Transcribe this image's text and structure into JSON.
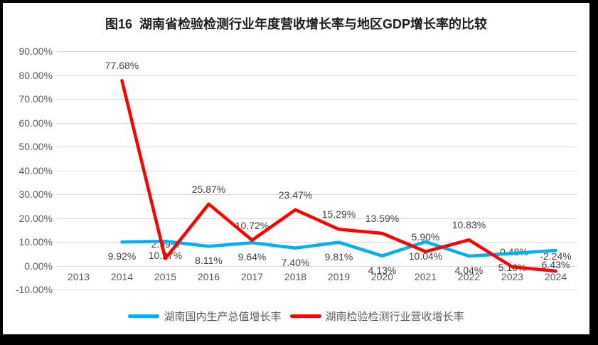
{
  "title": "图16  湖南省检验检测行业年度营收增长率与地区GDP增长率的比较",
  "chart_data": {
    "type": "line",
    "title": "图16  湖南省检验检测行业年度营收增长率与地区GDP增长率的比较",
    "xlabel": "",
    "ylabel": "",
    "ylim": [
      -10,
      90
    ],
    "grid": true,
    "legend_position": "bottom",
    "categories": [
      "2013",
      "2014",
      "2015",
      "2016",
      "2017",
      "2018",
      "2019",
      "2020",
      "2021",
      "2022",
      "2023",
      "2024"
    ],
    "y_tick_values": [
      90,
      80,
      70,
      60,
      50,
      40,
      30,
      20,
      10,
      0,
      -10
    ],
    "y_tick_labels": [
      "90.00%",
      "80.00%",
      "70.00%",
      "60.00%",
      "50.00%",
      "40.00%",
      "30.00%",
      "20.00%",
      "10.00%",
      "0.00%",
      "-10.00%"
    ],
    "series": [
      {
        "id": "gdp",
        "name": "湖南国内生产总值增长率",
        "color": "#00B0F0",
        "label_position": "below",
        "values": [
          null,
          9.92,
          10.27,
          8.11,
          9.64,
          7.4,
          9.81,
          4.13,
          10.04,
          4.04,
          5.16,
          6.43
        ],
        "labels": [
          null,
          "9.92%",
          "10.27%",
          "8.11%",
          "9.64%",
          "7.40%",
          "9.81%",
          "4.13%",
          "10.04%",
          "4.04%",
          "5.16%",
          "6.43%"
        ]
      },
      {
        "id": "industry",
        "name": "湖南检验检测行业营收增长率",
        "color": "#FF0000",
        "label_position": "above",
        "values": [
          null,
          77.68,
          2.99,
          25.87,
          10.72,
          23.47,
          15.29,
          13.59,
          5.9,
          10.83,
          -0.48,
          -2.24
        ],
        "labels": [
          null,
          "77.68%",
          "2.99%",
          "25.87%",
          "10.72%",
          "23.47%",
          "15.29%",
          "13.59%",
          "5.90%",
          "10.83%",
          "-0.48%",
          "-2.24%"
        ]
      }
    ]
  }
}
